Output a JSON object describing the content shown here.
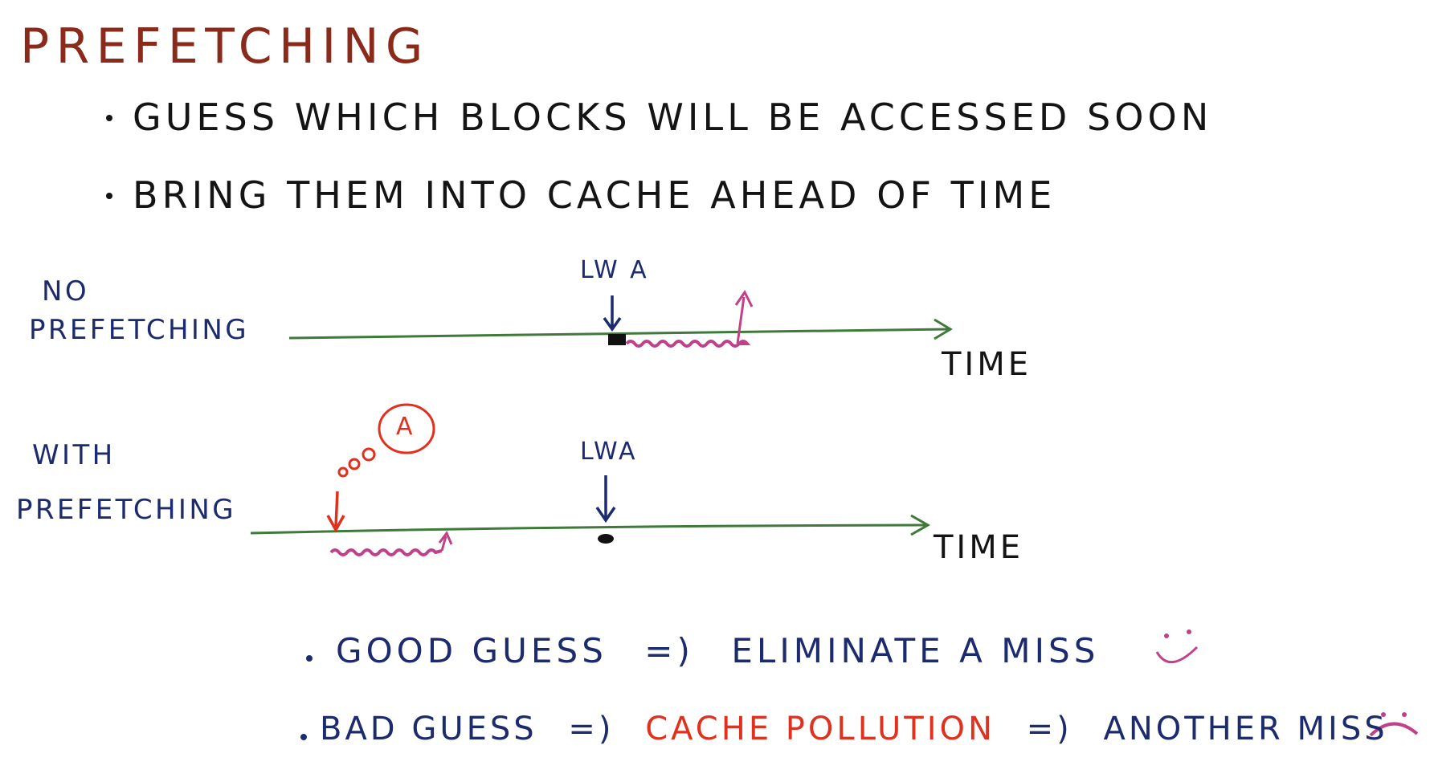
{
  "title": "PREFETCHING",
  "bullets": [
    "GUESS WHICH BLOCKS WILL BE ACCESSED SOON",
    "BRING THEM INTO CACHE AHEAD OF TIME"
  ],
  "timeline_no_prefetch": {
    "label_line1": "NO",
    "label_line2": "PREFETCHING",
    "event_label": "LW A",
    "axis_label": "TIME"
  },
  "timeline_with_prefetch": {
    "label_line1": "WITH",
    "label_line2": "PREFETCHING",
    "event_label": "LWA",
    "guess_bubble": "A",
    "axis_label": "TIME"
  },
  "outcomes": {
    "good": {
      "prefix": "GOOD GUESS",
      "arrow": "=)",
      "result": "ELIMINATE A MISS"
    },
    "bad": {
      "prefix": "BAD GUESS",
      "arrow1": "=)",
      "result_highlight": "CACHE POLLUTION",
      "arrow2": "=)",
      "result": "ANOTHER MISS"
    }
  },
  "colors": {
    "title": "#8a2a1a",
    "text": "#141414",
    "navy": "#1c2a6e",
    "green_axis": "#3f7a3a",
    "magenta_wait": "#c0418a",
    "red_guess": "#e0301e"
  }
}
